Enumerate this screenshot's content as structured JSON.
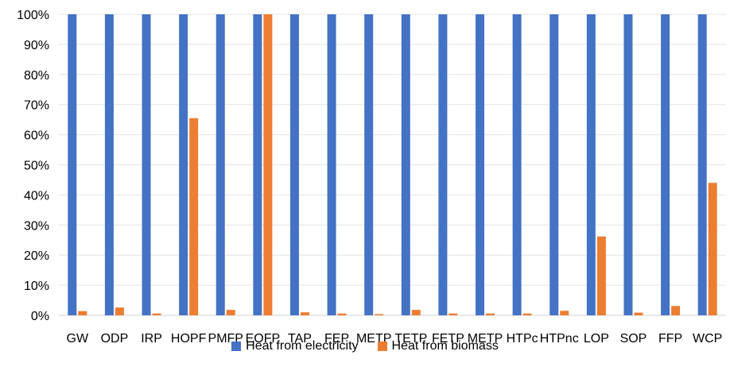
{
  "chart_data": {
    "type": "bar",
    "categories": [
      "GW",
      "ODP",
      "IRP",
      "HOPF",
      "PMFP",
      "EOFP",
      "TAP",
      "FEP",
      "METP",
      "TETP",
      "FETP",
      "METP",
      "HTPc",
      "HTPnc",
      "LOP",
      "SOP",
      "FFP",
      "WCP"
    ],
    "series": [
      {
        "name": "Heat from electricity",
        "color": "#4472C4",
        "values": [
          100,
          100,
          100,
          100,
          100,
          100,
          100,
          100,
          100,
          100,
          100,
          100,
          100,
          100,
          100,
          100,
          100,
          100
        ]
      },
      {
        "name": "Heat from biomass",
        "color": "#ED7D31",
        "values": [
          1.4,
          2.6,
          0.6,
          65.5,
          1.8,
          100,
          1.0,
          0.6,
          0.4,
          1.8,
          0.6,
          0.6,
          0.6,
          1.5,
          26.2,
          0.9,
          3.1,
          44.0
        ]
      }
    ],
    "yticks": [
      "0%",
      "10%",
      "20%",
      "30%",
      "40%",
      "50%",
      "60%",
      "70%",
      "80%",
      "90%",
      "100%"
    ],
    "ylim": [
      0,
      100
    ],
    "grid": true,
    "legend_position": "bottom"
  }
}
